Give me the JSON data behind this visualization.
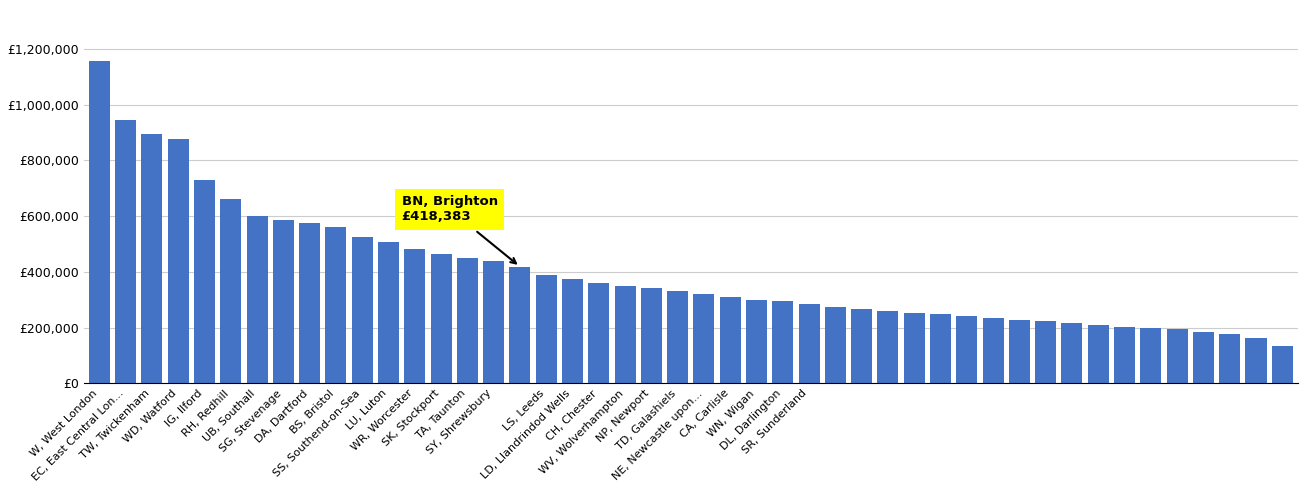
{
  "bar_color": "#4472c4",
  "highlight_index": 16,
  "annotation_text": "BN, Brighton\n£418,383",
  "annotation_bg": "#ffff00",
  "ylim": [
    0,
    1350000
  ],
  "yticks": [
    0,
    200000,
    400000,
    600000,
    800000,
    1000000,
    1200000
  ],
  "ytick_labels": [
    "£0",
    "£200,000",
    "£400,000",
    "£600,000",
    "£800,000",
    "£1,000,000",
    "£1,200,000"
  ],
  "grid_color": "#cccccc",
  "bg_color": "#ffffff",
  "font_size_ticks": 8,
  "font_size_yticks": 9,
  "all_values": [
    1155000,
    945000,
    895000,
    875000,
    730000,
    660000,
    600000,
    585000,
    575000,
    560000,
    525000,
    505000,
    480000,
    465000,
    450000,
    440000,
    418383,
    390000,
    375000,
    360000,
    350000,
    340000,
    330000,
    320000,
    310000,
    300000,
    295000,
    285000,
    275000,
    268000,
    260000,
    252000,
    248000,
    242000,
    235000,
    228000,
    222000,
    215000,
    208000,
    202000,
    197000,
    193000,
    185000,
    175000,
    162000,
    135000
  ],
  "all_labels": [
    "W, West London",
    "EC, East Central Lon...",
    "TW, Twickenham",
    "WD, Watford",
    "IG, Ilford",
    "RH, Redhill",
    "UB, Southall",
    "SG, Stevenage",
    "DA, Dartford",
    "BS, Bristol",
    "SS, Southend-on-Sea",
    "LU, Luton",
    "WR, Worcester",
    "SK, Stockport",
    "TA, Taunton",
    "SY, Shrewsbury",
    "BN, Brighton",
    "LS, Leeds",
    "LD, Llandrindod Wells",
    "CH, Chester",
    "WV, Wolverhampton",
    "NP, Newport",
    "TD, Galashiels",
    "NE, Newcastle upon...",
    "CA, Carlisle",
    "WN, Wigan",
    "DL, Darlington",
    "SR, Sunderland",
    "",
    "",
    "",
    "",
    "",
    "",
    "",
    "",
    "",
    "",
    "",
    "",
    "",
    "",
    "",
    "",
    "",
    ""
  ],
  "labeled_positions": [
    0,
    1,
    2,
    3,
    4,
    5,
    6,
    7,
    8,
    9,
    10,
    11,
    12,
    13,
    14,
    15,
    17,
    18,
    19,
    20,
    21,
    22,
    23,
    24,
    25,
    26,
    27
  ],
  "tick_labels": [
    "W, West London",
    "EC, East Central Lon...",
    "TW, Twickenham",
    "WD, Watford",
    "IG, Ilford",
    "RH, Redhill",
    "UB, Southall",
    "SG, Stevenage",
    "DA, Dartford",
    "BS, Bristol",
    "SS, Southend-on-Sea",
    "LU, Luton",
    "WR, Worcester",
    "SK, Stockport",
    "TA, Taunton",
    "SY, Shrewsbury",
    "LS, Leeds",
    "LD, Llandrindod Wells",
    "CH, Chester",
    "WV, Wolverhampton",
    "NP, Newport",
    "TD, Galashiels",
    "NE, Newcastle upon...",
    "CA, Carlisle",
    "WN, Wigan",
    "DL, Darlington",
    "SR, Sunderland"
  ]
}
